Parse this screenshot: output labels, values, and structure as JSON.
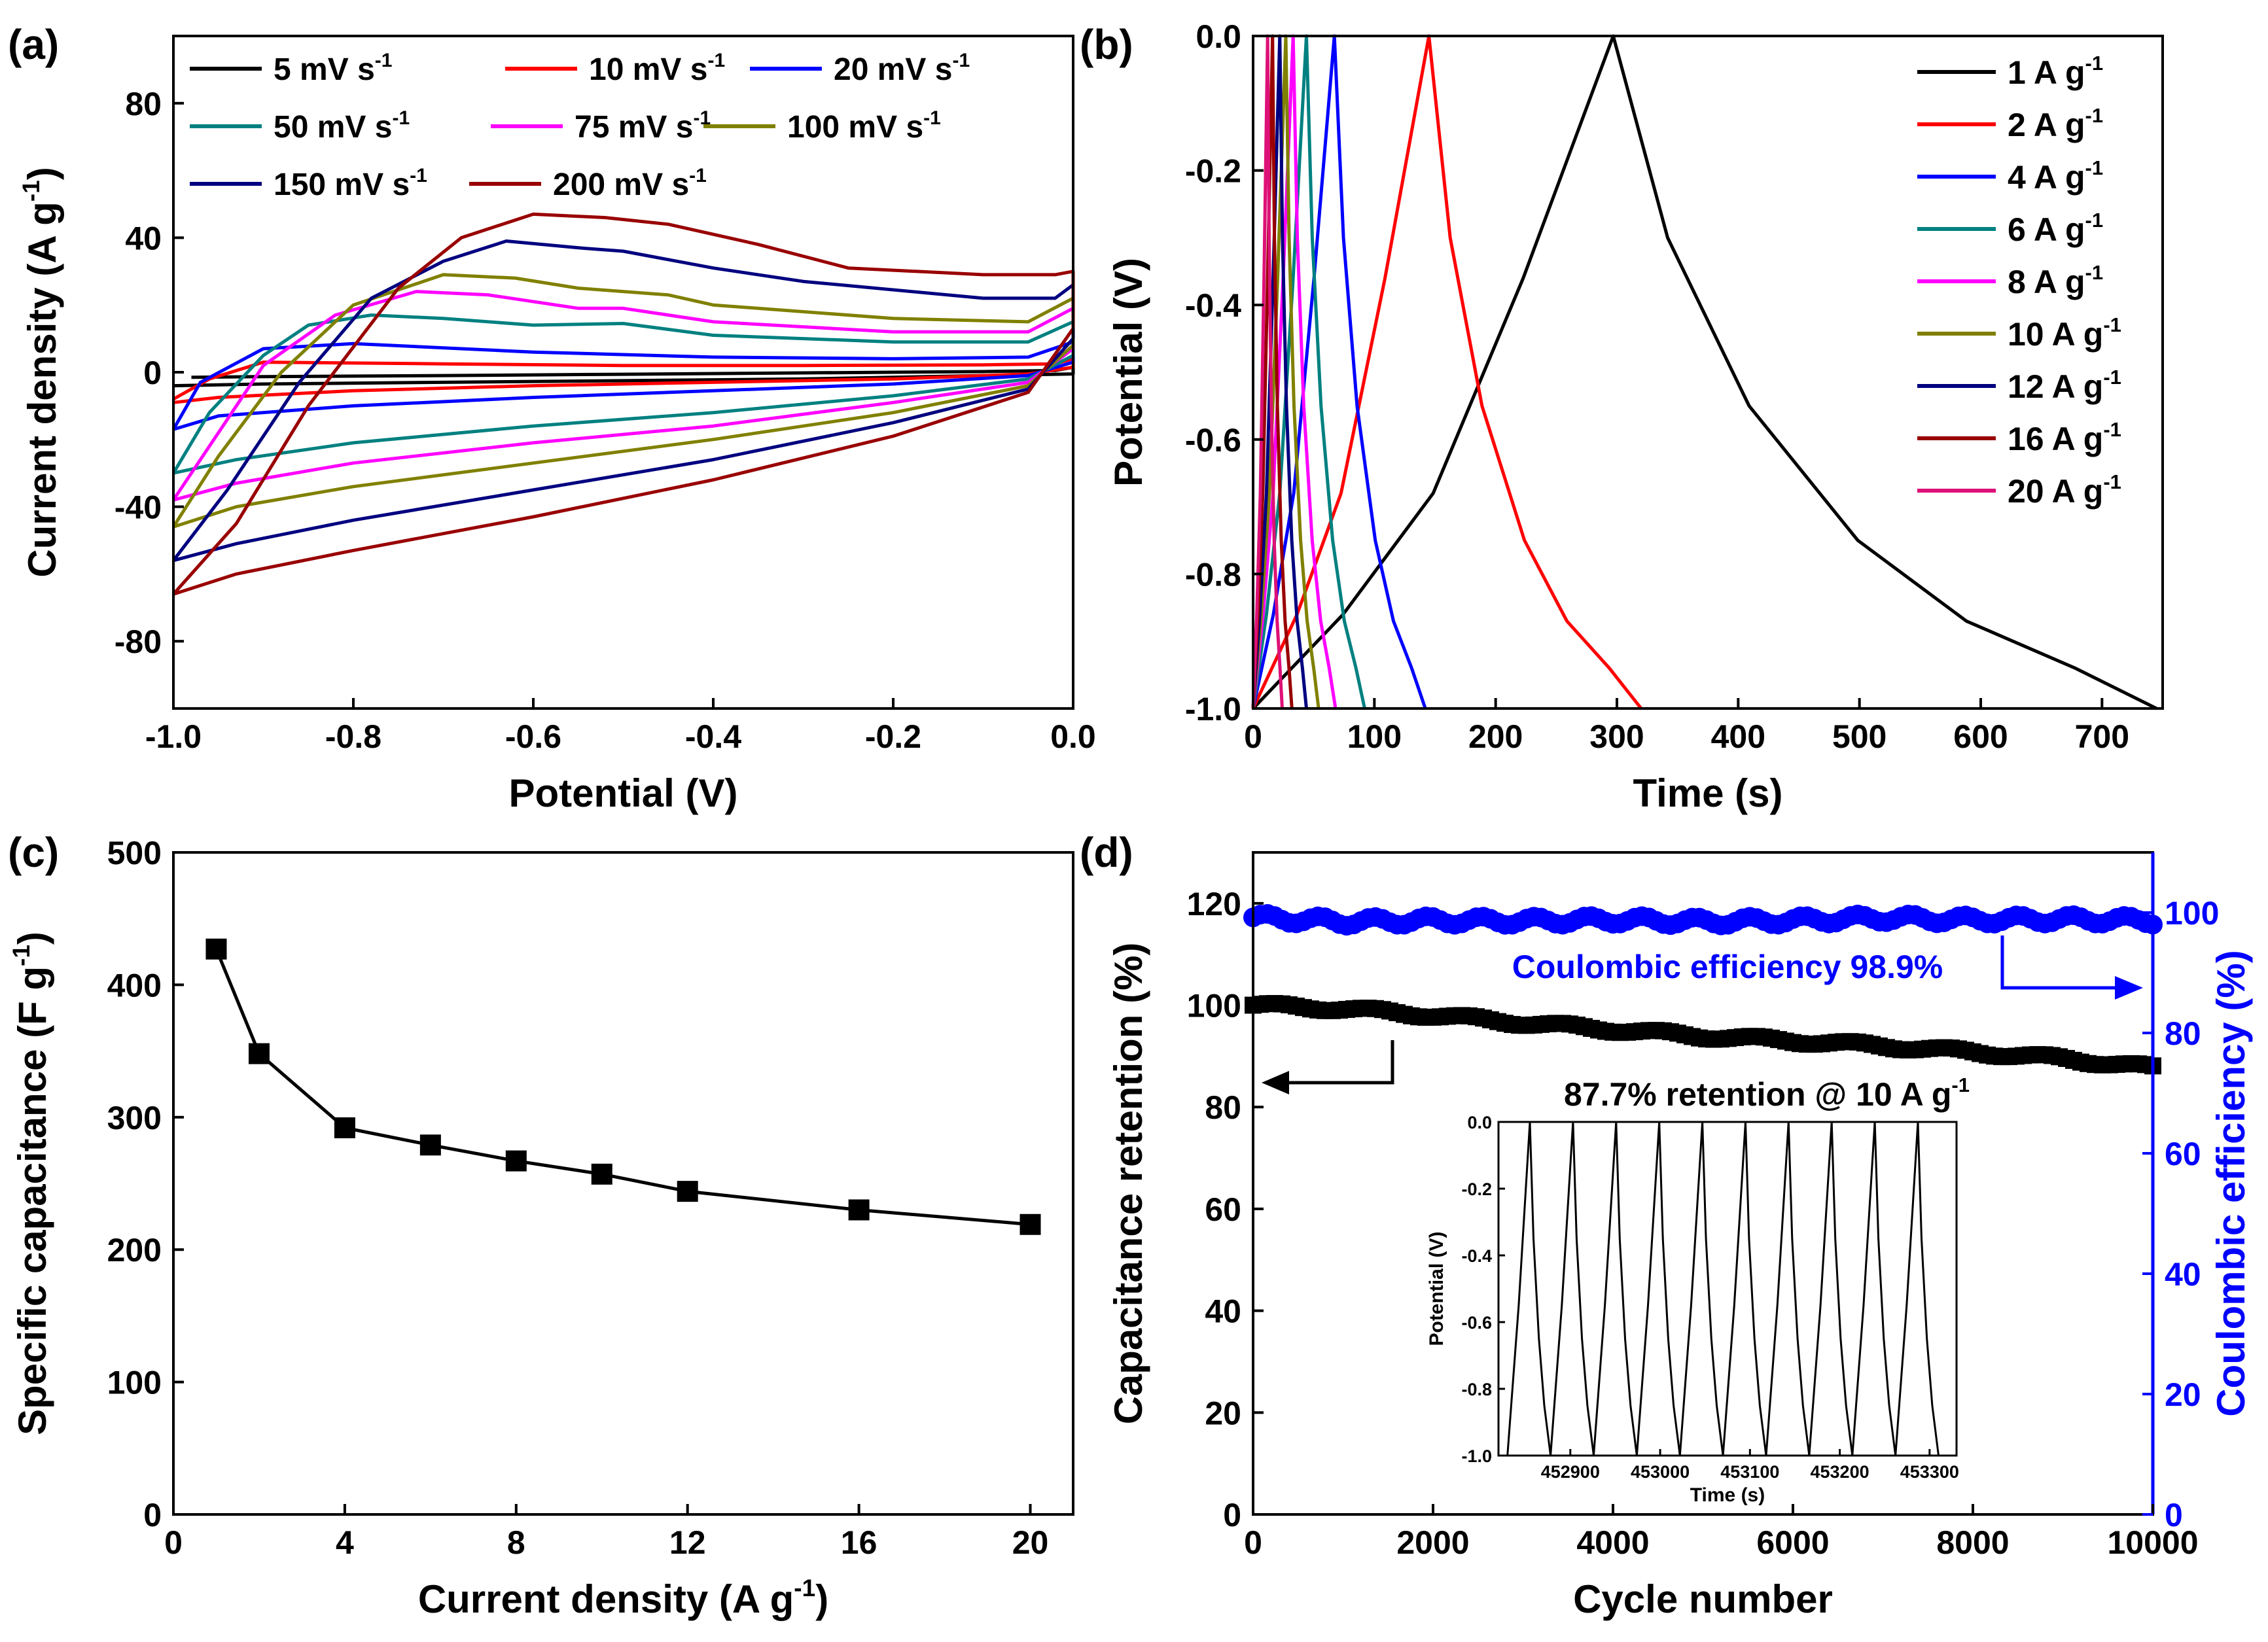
{
  "chart_data": [
    {
      "panel": "(a)",
      "type": "line",
      "xlabel": "Potential (V)",
      "ylabel": "Current density (A g",
      "ylabel_sup": "-1",
      "ylabel_close": ")",
      "xlim": [
        -1.0,
        0.0
      ],
      "ylim": [
        -100,
        100
      ],
      "xticks": [
        "-1.0",
        "-0.8",
        "-0.6",
        "-0.4",
        "-0.2",
        "0.0"
      ],
      "yticks": [
        "-80",
        "-40",
        "0",
        "40",
        "80"
      ],
      "grid": false,
      "legend_position": "top",
      "series": [
        {
          "name": "5 mV s",
          "sup": "-1",
          "color": "#000000",
          "upper": [
            [
              -0.98,
              -1.5
            ],
            [
              -0.9,
              -1.3
            ],
            [
              -0.7,
              -1.0
            ],
            [
              -0.5,
              -0.6
            ],
            [
              -0.3,
              -0.2
            ],
            [
              -0.1,
              0.2
            ],
            [
              -0.02,
              0.5
            ],
            [
              0,
              1.5
            ]
          ],
          "lower": [
            [
              0,
              -0.5
            ],
            [
              -0.1,
              -1.0
            ],
            [
              -0.3,
              -2.0
            ],
            [
              -0.5,
              -2.5
            ],
            [
              -0.7,
              -3.0
            ],
            [
              -0.9,
              -3.5
            ],
            [
              -1.0,
              -4.0
            ]
          ]
        },
        {
          "name": "10 mV s",
          "sup": "-1",
          "color": "#ff0000",
          "upper": [
            [
              -1.0,
              -8
            ],
            [
              -0.96,
              -2
            ],
            [
              -0.9,
              3.0
            ],
            [
              -0.7,
              2.5
            ],
            [
              -0.5,
              2.0
            ],
            [
              -0.3,
              2.0
            ],
            [
              -0.1,
              2.2
            ],
            [
              -0.02,
              2.5
            ],
            [
              0,
              4
            ]
          ],
          "lower": [
            [
              0,
              1.5
            ],
            [
              -0.05,
              -0.5
            ],
            [
              -0.2,
              -2.0
            ],
            [
              -0.4,
              -3.0
            ],
            [
              -0.6,
              -4.0
            ],
            [
              -0.8,
              -5.5
            ],
            [
              -0.95,
              -7.5
            ],
            [
              -1.0,
              -9
            ]
          ]
        },
        {
          "name": "20 mV s",
          "sup": "-1",
          "color": "#0000ff",
          "upper": [
            [
              -1.0,
              -17
            ],
            [
              -0.97,
              -3
            ],
            [
              -0.9,
              7.0
            ],
            [
              -0.8,
              8.5
            ],
            [
              -0.6,
              6.0
            ],
            [
              -0.4,
              4.5
            ],
            [
              -0.2,
              4.0
            ],
            [
              -0.05,
              4.5
            ],
            [
              0,
              9
            ]
          ],
          "lower": [
            [
              0,
              3
            ],
            [
              -0.05,
              -1
            ],
            [
              -0.2,
              -3.5
            ],
            [
              -0.4,
              -5.5
            ],
            [
              -0.6,
              -7.5
            ],
            [
              -0.8,
              -10
            ],
            [
              -0.95,
              -13
            ],
            [
              -1.0,
              -17
            ]
          ]
        },
        {
          "name": "50 mV s",
          "sup": "-1",
          "color": "#008080",
          "upper": [
            [
              -1.0,
              -30
            ],
            [
              -0.96,
              -12
            ],
            [
              -0.9,
              5
            ],
            [
              -0.85,
              14
            ],
            [
              -0.78,
              17
            ],
            [
              -0.7,
              16
            ],
            [
              -0.6,
              14
            ],
            [
              -0.5,
              14.5
            ],
            [
              -0.4,
              11
            ],
            [
              -0.2,
              9
            ],
            [
              -0.05,
              9
            ],
            [
              0,
              15
            ]
          ],
          "lower": [
            [
              0,
              5
            ],
            [
              -0.05,
              -2
            ],
            [
              -0.2,
              -7
            ],
            [
              -0.4,
              -12
            ],
            [
              -0.6,
              -16
            ],
            [
              -0.8,
              -21
            ],
            [
              -0.93,
              -26
            ],
            [
              -1.0,
              -30
            ]
          ]
        },
        {
          "name": "75 mV s",
          "sup": "-1",
          "color": "#ff00ff",
          "upper": [
            [
              -1.0,
              -38
            ],
            [
              -0.95,
              -18
            ],
            [
              -0.9,
              2
            ],
            [
              -0.82,
              17
            ],
            [
              -0.73,
              24
            ],
            [
              -0.65,
              23
            ],
            [
              -0.55,
              19
            ],
            [
              -0.5,
              19
            ],
            [
              -0.4,
              15
            ],
            [
              -0.2,
              12
            ],
            [
              -0.05,
              12
            ],
            [
              0,
              19
            ]
          ],
          "lower": [
            [
              0,
              7
            ],
            [
              -0.05,
              -3
            ],
            [
              -0.2,
              -9
            ],
            [
              -0.4,
              -16
            ],
            [
              -0.6,
              -21
            ],
            [
              -0.8,
              -27
            ],
            [
              -0.93,
              -33
            ],
            [
              -1.0,
              -38
            ]
          ]
        },
        {
          "name": "100 mV s",
          "sup": "-1",
          "color": "#808000",
          "upper": [
            [
              -1.0,
              -46
            ],
            [
              -0.95,
              -25
            ],
            [
              -0.88,
              0
            ],
            [
              -0.8,
              20
            ],
            [
              -0.7,
              29
            ],
            [
              -0.62,
              28
            ],
            [
              -0.55,
              25
            ],
            [
              -0.45,
              23
            ],
            [
              -0.4,
              20
            ],
            [
              -0.2,
              16
            ],
            [
              -0.05,
              15
            ],
            [
              0,
              22
            ]
          ],
          "lower": [
            [
              0,
              8
            ],
            [
              -0.05,
              -4
            ],
            [
              -0.2,
              -12
            ],
            [
              -0.4,
              -20
            ],
            [
              -0.6,
              -27
            ],
            [
              -0.8,
              -34
            ],
            [
              -0.93,
              -40
            ],
            [
              -1.0,
              -46
            ]
          ]
        },
        {
          "name": "150 mV s",
          "sup": "-1",
          "color": "#000080",
          "upper": [
            [
              -1.0,
              -56
            ],
            [
              -0.94,
              -35
            ],
            [
              -0.86,
              -3
            ],
            [
              -0.78,
              22
            ],
            [
              -0.7,
              33
            ],
            [
              -0.63,
              39
            ],
            [
              -0.55,
              37
            ],
            [
              -0.5,
              36
            ],
            [
              -0.4,
              31
            ],
            [
              -0.3,
              27
            ],
            [
              -0.1,
              22
            ],
            [
              -0.02,
              22
            ],
            [
              0,
              26
            ]
          ],
          "lower": [
            [
              0,
              10
            ],
            [
              -0.05,
              -5
            ],
            [
              -0.2,
              -15
            ],
            [
              -0.4,
              -26
            ],
            [
              -0.6,
              -35
            ],
            [
              -0.8,
              -44
            ],
            [
              -0.93,
              -51
            ],
            [
              -1.0,
              -56
            ]
          ]
        },
        {
          "name": "200 mV s",
          "sup": "-1",
          "color": "#990000",
          "upper": [
            [
              -1.0,
              -66
            ],
            [
              -0.93,
              -45
            ],
            [
              -0.85,
              -10
            ],
            [
              -0.75,
              25
            ],
            [
              -0.68,
              40
            ],
            [
              -0.6,
              47
            ],
            [
              -0.52,
              46
            ],
            [
              -0.45,
              44
            ],
            [
              -0.35,
              38
            ],
            [
              -0.25,
              31
            ],
            [
              -0.1,
              29
            ],
            [
              -0.02,
              29
            ],
            [
              0,
              30
            ]
          ],
          "lower": [
            [
              0,
              13
            ],
            [
              -0.05,
              -6
            ],
            [
              -0.2,
              -19
            ],
            [
              -0.4,
              -32
            ],
            [
              -0.6,
              -43
            ],
            [
              -0.8,
              -53
            ],
            [
              -0.93,
              -60
            ],
            [
              -1.0,
              -66
            ]
          ]
        }
      ]
    },
    {
      "panel": "(b)",
      "type": "line",
      "xlabel": "Time (s)",
      "ylabel": "Potential (V)",
      "xlim": [
        0,
        750
      ],
      "ylim": [
        -1.0,
        0.0
      ],
      "xticks": [
        "0",
        "100",
        "200",
        "300",
        "400",
        "500",
        "600",
        "700"
      ],
      "yticks": [
        "-1.0",
        "-0.8",
        "-0.6",
        "-0.4",
        "-0.2",
        "0.0"
      ],
      "grid": false,
      "legend_position": "top-right",
      "series": [
        {
          "name": "1 A g",
          "sup": "-1",
          "color": "#000000",
          "charge_end": 297,
          "discharge_end": 745
        },
        {
          "name": "2 A g",
          "sup": "-1",
          "color": "#ff0000",
          "charge_end": 145,
          "discharge_end": 320
        },
        {
          "name": "4 A g",
          "sup": "-1",
          "color": "#0000ff",
          "charge_end": 67,
          "discharge_end": 142
        },
        {
          "name": "6 A g",
          "sup": "-1",
          "color": "#008080",
          "charge_end": 44,
          "discharge_end": 92
        },
        {
          "name": "8 A g",
          "sup": "-1",
          "color": "#ff00ff",
          "charge_end": 33,
          "discharge_end": 68
        },
        {
          "name": "10 A g",
          "sup": "-1",
          "color": "#808000",
          "charge_end": 27,
          "discharge_end": 54
        },
        {
          "name": "12 A g",
          "sup": "-1",
          "color": "#000080",
          "charge_end": 22,
          "discharge_end": 44
        },
        {
          "name": "16 A g",
          "sup": "-1",
          "color": "#990000",
          "charge_end": 16,
          "discharge_end": 32
        },
        {
          "name": "20 A g",
          "sup": "-1",
          "color": "#dd1177",
          "charge_end": 12,
          "discharge_end": 24
        }
      ]
    },
    {
      "panel": "(c)",
      "type": "line",
      "xlabel": "Current density (A g",
      "xlabel_sup": "-1",
      "xlabel_close": ")",
      "ylabel": "Specific capacitance (F g",
      "ylabel_sup": "-1",
      "ylabel_close": ")",
      "xlim": [
        0,
        21
      ],
      "ylim": [
        0,
        500
      ],
      "xticks": [
        "0",
        "4",
        "8",
        "12",
        "16",
        "20"
      ],
      "yticks": [
        "0",
        "100",
        "200",
        "300",
        "400",
        "500"
      ],
      "grid": false,
      "x": [
        1,
        2,
        4,
        6,
        8,
        10,
        12,
        16,
        20
      ],
      "y": [
        427,
        348,
        292,
        279,
        267,
        257,
        244,
        230,
        219
      ]
    },
    {
      "panel": "(d)",
      "type": "scatter",
      "xlabel": "Cycle number",
      "ylabel_left": "Capacitance retention (%)",
      "ylabel_right": "Coulombic efficiency (%)",
      "xlim": [
        0,
        10000
      ],
      "ylim_left": [
        0,
        130
      ],
      "ylim_right": [
        0,
        110
      ],
      "xticks": [
        "0",
        "2000",
        "4000",
        "6000",
        "8000",
        "10000"
      ],
      "yticks_left": [
        "0",
        "20",
        "40",
        "60",
        "80",
        "100",
        "120"
      ],
      "yticks_right": [
        "0",
        "20",
        "40",
        "60",
        "80",
        "100"
      ],
      "right_axis_color": "#0000ff",
      "grid": false,
      "retention": {
        "x": [
          0,
          1000,
          2000,
          3000,
          4000,
          5000,
          6000,
          7000,
          8000,
          9000,
          10000
        ],
        "y": [
          100,
          99.3,
          98.0,
          96.5,
          95.2,
          93.9,
          93.0,
          92.0,
          90.8,
          89.5,
          87.7
        ]
      },
      "efficiency": {
        "x": [
          0,
          1000,
          2000,
          3000,
          4000,
          5000,
          6000,
          7000,
          8000,
          9000,
          10000
        ],
        "y": [
          99.2,
          98.5,
          98.7,
          98.6,
          98.8,
          98.5,
          98.7,
          99.1,
          98.8,
          98.9,
          98.7
        ]
      },
      "annotations": {
        "efficiency": "Coulombic efficiency 98.9%",
        "retention": "87.7% retention @ 10 A g",
        "retention_sup": "-1"
      },
      "inset": {
        "xlabel": "Time (s)",
        "ylabel": "Potential (V)",
        "xlim": [
          452820,
          453330
        ],
        "ylim": [
          -1.0,
          0.0
        ],
        "xticks": [
          "452900",
          "453000",
          "453100",
          "453200",
          "453300"
        ],
        "yticks": [
          "-1.0",
          "-0.8",
          "-0.6",
          "-0.4",
          "-0.2",
          "0.0"
        ],
        "cycles": 10,
        "first_start": 452830,
        "peak_offset": 25,
        "cycle_period": 48
      }
    }
  ],
  "panels": {
    "a": "(a)",
    "b": "(b)",
    "c": "(c)",
    "d": "(d)"
  }
}
